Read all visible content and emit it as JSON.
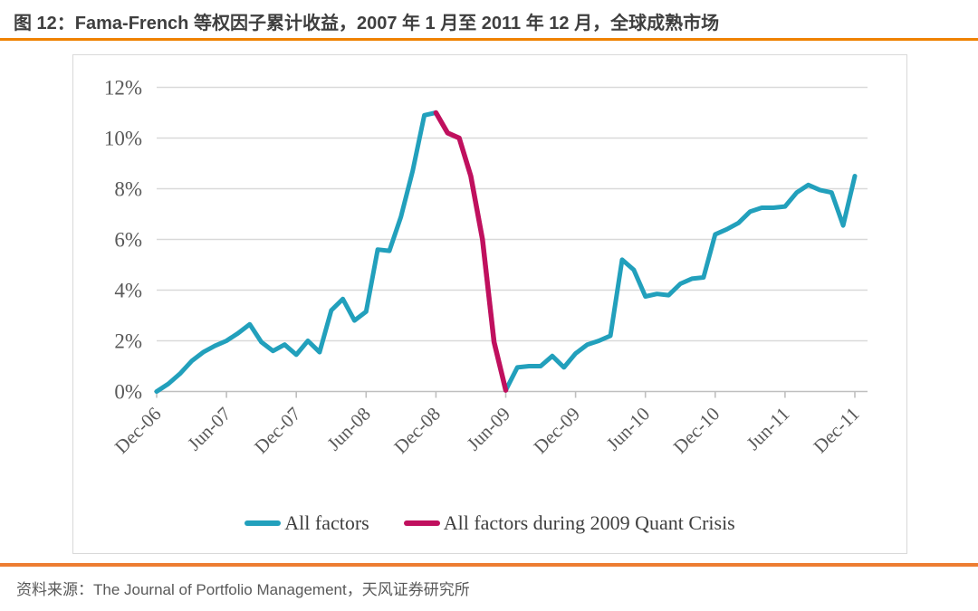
{
  "header": {
    "title": "图 12：Fama-French 等权因子累计收益，2007 年 1 月至 2011 年 12 月，全球成熟市场"
  },
  "colors": {
    "all_factors": "#22a0bc",
    "crisis": "#c0105e",
    "accent_orange": "#ef8200",
    "grid": "#d9d9d9",
    "axis": "#bfbfbf",
    "axis_text": "#595959"
  },
  "legend": {
    "items": [
      {
        "label": "All factors",
        "color_key": "all_factors"
      },
      {
        "label": "All factors during 2009 Quant Crisis",
        "color_key": "crisis"
      }
    ]
  },
  "chart_data": {
    "type": "line",
    "x_start": "Dec-06",
    "x_frequency": "monthly",
    "x_tick_labels": [
      "Dec-06",
      "Jun-07",
      "Dec-07",
      "Jun-08",
      "Dec-08",
      "Jun-09",
      "Dec-09",
      "Jun-10",
      "Dec-10",
      "Jun-11",
      "Dec-11"
    ],
    "x_tick_indices": [
      0,
      6,
      12,
      18,
      24,
      30,
      36,
      42,
      48,
      54,
      60
    ],
    "y_tick_labels": [
      "0%",
      "2%",
      "4%",
      "6%",
      "8%",
      "10%",
      "12%"
    ],
    "ylim": [
      0,
      12
    ],
    "y_unit": "%",
    "grid": "horizontal",
    "legend_position": "bottom",
    "series": [
      {
        "name": "All factors",
        "color_key": "all_factors",
        "start_index": 0,
        "values": [
          0.0,
          0.3,
          0.7,
          1.2,
          1.55,
          1.8,
          2.0,
          2.3,
          2.65,
          1.95,
          1.6,
          1.85,
          1.45,
          2.0,
          1.55,
          3.2,
          3.65,
          2.8,
          3.15,
          5.6,
          5.55,
          6.9,
          8.7,
          10.9,
          11.0,
          10.2,
          10.0,
          8.5,
          6.0,
          1.95,
          0.05,
          0.95,
          1.0,
          1.0,
          1.4,
          0.95,
          1.5,
          1.85,
          2.0,
          2.2,
          5.2,
          4.8,
          3.75,
          3.85,
          3.8,
          4.25,
          4.45,
          4.5,
          6.2,
          6.4,
          6.65,
          7.1,
          7.25,
          7.25,
          7.3,
          7.85,
          8.15,
          7.95,
          7.85,
          6.55,
          8.5
        ]
      },
      {
        "name": "All factors during 2009 Quant Crisis",
        "color_key": "crisis",
        "start_index": 24,
        "values": [
          11.0,
          10.2,
          10.0,
          8.5,
          6.0,
          1.95,
          0.05
        ]
      }
    ]
  },
  "footer": {
    "source_prefix": "资料来源：",
    "source_body": "The Journal of Portfolio Management，天风证券研究所"
  }
}
